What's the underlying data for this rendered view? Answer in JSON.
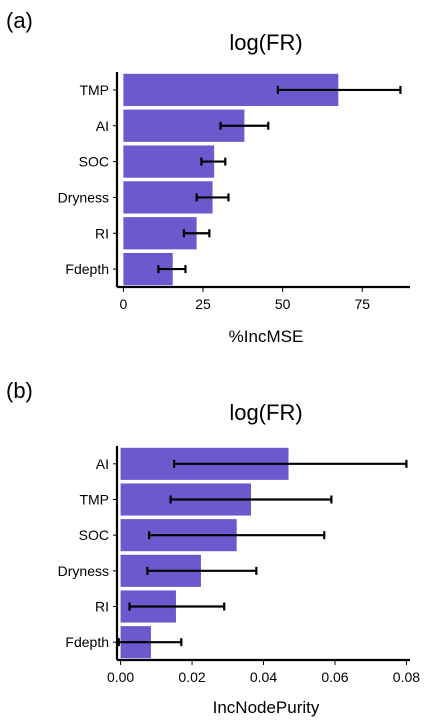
{
  "chart_data": [
    {
      "panel_label": "(a)",
      "type": "bar",
      "orientation": "horizontal",
      "title": "log(FR)",
      "xlabel": "%IncMSE",
      "ylabel": "",
      "categories": [
        "TMP",
        "AI",
        "SOC",
        "Dryness",
        "RI",
        "Fdepth"
      ],
      "values": [
        67.5,
        38,
        28.5,
        28,
        23,
        15.5
      ],
      "error_low": [
        48.5,
        30.5,
        24.5,
        23,
        19,
        11
      ],
      "error_high": [
        87,
        45.5,
        32,
        33,
        27,
        19.5
      ],
      "xlim": [
        -2,
        90
      ],
      "xticks": [
        0,
        25,
        50,
        75
      ],
      "tick_labels": [
        "0",
        "25",
        "50",
        "75"
      ],
      "bar_color": "#6a5acd",
      "grid": false,
      "legend": "none"
    },
    {
      "panel_label": "(b)",
      "type": "bar",
      "orientation": "horizontal",
      "title": "log(FR)",
      "xlabel": "IncNodePurity",
      "ylabel": "",
      "categories": [
        "AI",
        "TMP",
        "SOC",
        "Dryness",
        "RI",
        "Fdepth"
      ],
      "values": [
        0.047,
        0.0365,
        0.0325,
        0.0225,
        0.0155,
        0.0085
      ],
      "error_low": [
        0.015,
        0.014,
        0.008,
        0.0075,
        0.0025,
        -0.0005
      ],
      "error_high": [
        0.08,
        0.059,
        0.057,
        0.038,
        0.029,
        0.017
      ],
      "xlim": [
        -0.001,
        0.081
      ],
      "xticks": [
        0,
        0.02,
        0.04,
        0.06,
        0.08
      ],
      "tick_labels": [
        "0.00",
        "0.02",
        "0.04",
        "0.06",
        "0.08"
      ],
      "bar_color": "#6a5acd",
      "grid": false,
      "legend": "none"
    }
  ]
}
